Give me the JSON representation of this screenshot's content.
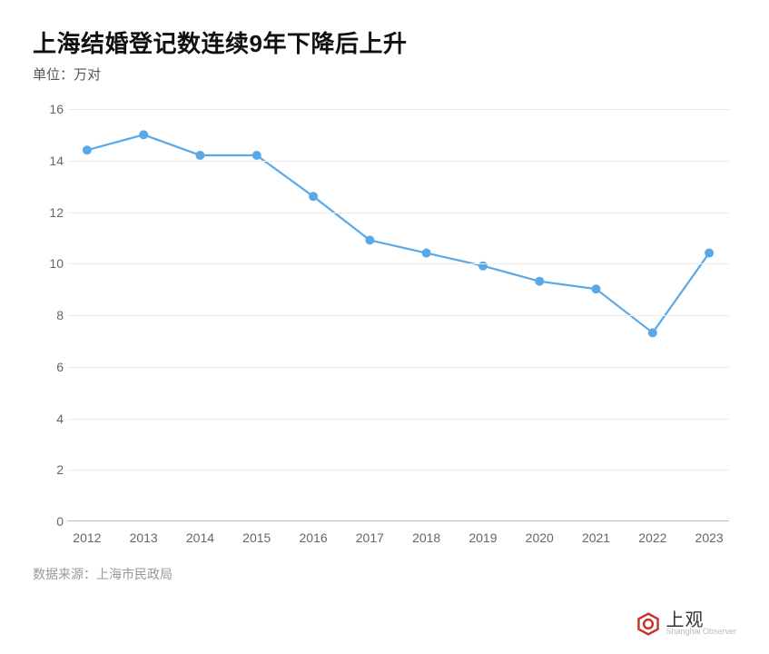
{
  "title": "上海结婚登记数连续9年下降后上升",
  "subtitle": "单位：万对",
  "source_label": "数据来源：上海市民政局",
  "brand": {
    "name": "上观",
    "sub": "Shanghai Observer",
    "logo_color": "#c9302c"
  },
  "chart": {
    "type": "line",
    "background_color": "#ffffff",
    "grid_color": "#ececec",
    "axis_color": "#bdbdbd",
    "tick_color": "#666666",
    "title_fontsize": 26,
    "label_fontsize": 14,
    "ylim": [
      0,
      16
    ],
    "ytick_step": 2,
    "yticks": [
      0,
      2,
      4,
      6,
      8,
      10,
      12,
      14,
      16
    ],
    "categories": [
      "2012",
      "2013",
      "2014",
      "2015",
      "2016",
      "2017",
      "2018",
      "2019",
      "2020",
      "2021",
      "2022",
      "2023"
    ],
    "values": [
      14.4,
      15.0,
      14.2,
      14.2,
      12.6,
      10.9,
      10.4,
      9.9,
      9.3,
      9.0,
      7.3,
      10.4
    ],
    "line_color": "#5aa8e6",
    "line_width": 2.2,
    "marker": {
      "shape": "circle",
      "size": 4.5,
      "fill": "#5aa8e6",
      "stroke": "#5aa8e6"
    }
  }
}
